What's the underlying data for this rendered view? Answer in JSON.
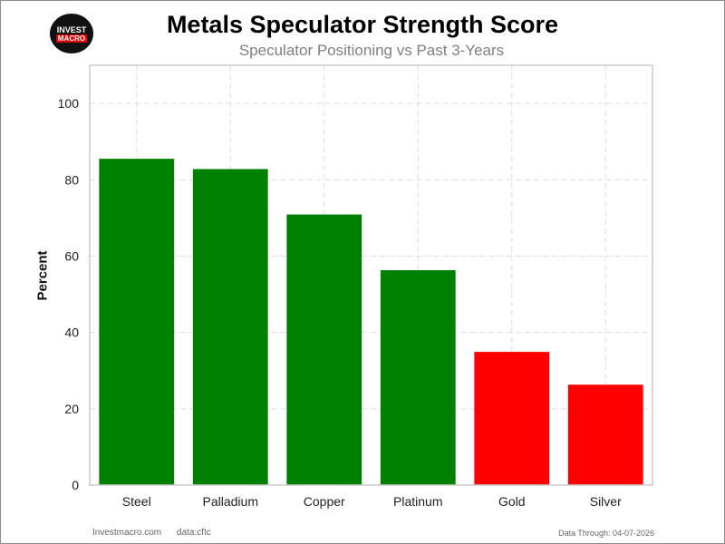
{
  "logo": {
    "top": "INVEST",
    "bottom": "MACRO"
  },
  "footer": {
    "site": "Investmacro.com",
    "source": "data:cftc",
    "data_through": "Data Through: 04-07-2026"
  },
  "colors": {
    "positive": "#008000",
    "negative": "#ff0000",
    "grid": "#dddddd",
    "axis": "#cccccc"
  },
  "chart_data": {
    "type": "bar",
    "title": "Metals Speculator Strength Score",
    "subtitle": "Speculator Positioning vs Past 3-Years",
    "xlabel": "",
    "ylabel": "Percent",
    "categories": [
      "Steel",
      "Palladium",
      "Copper",
      "Platinum",
      "Gold",
      "Silver"
    ],
    "values": [
      85.5,
      82.8,
      70.9,
      56.3,
      34.9,
      26.3
    ],
    "bar_colors": [
      "#008000",
      "#008000",
      "#008000",
      "#008000",
      "#ff0000",
      "#ff0000"
    ],
    "ylim": [
      0,
      110
    ],
    "yticks": [
      0,
      20,
      40,
      60,
      80,
      100
    ],
    "grid": true,
    "legend": "none"
  }
}
